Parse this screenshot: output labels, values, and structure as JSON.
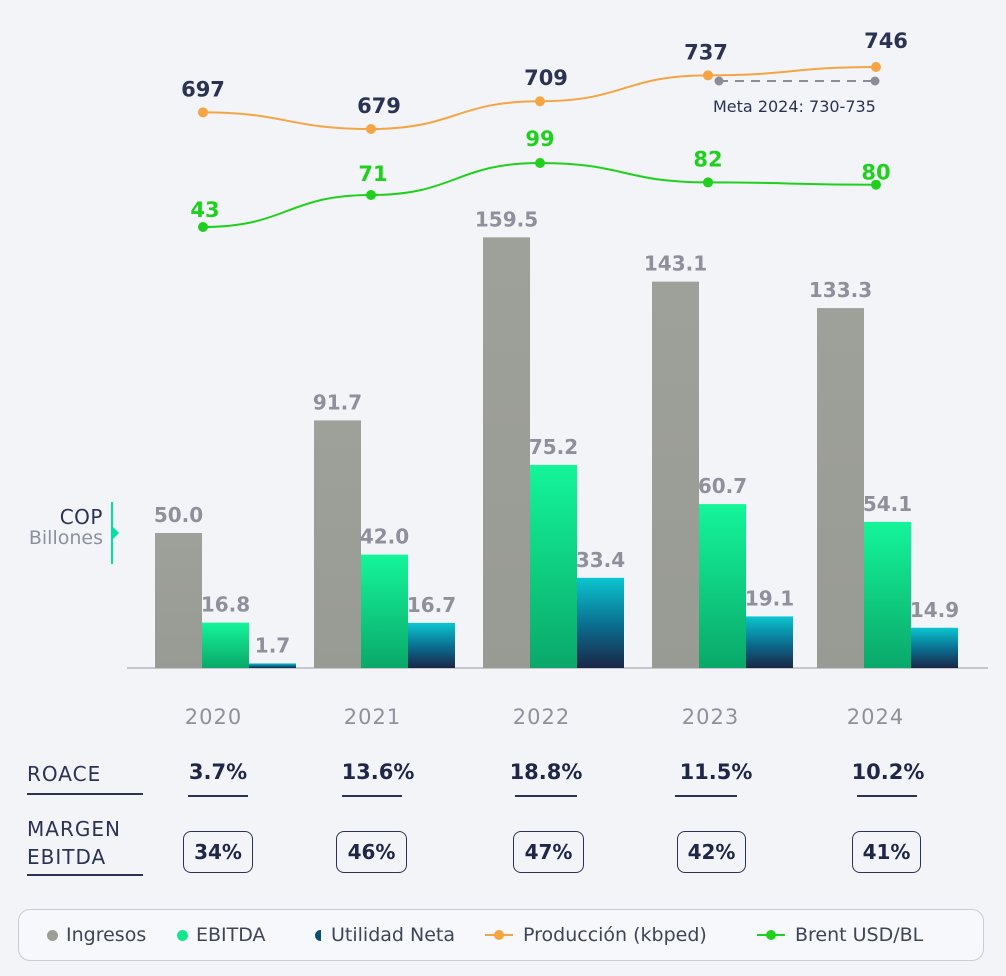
{
  "chart_data": {
    "type": "bar",
    "unit": [
      "COP",
      "Billones"
    ],
    "categories": [
      "2020",
      "2021",
      "2022",
      "2023",
      "2024"
    ],
    "series": [
      {
        "name": "Ingresos",
        "color": "#9c9f98",
        "values": [
          50.0,
          91.7,
          159.5,
          143.1,
          133.3
        ],
        "labels": [
          "50.0",
          "91.7",
          "159.5",
          "143.1",
          "133.3"
        ]
      },
      {
        "name": "EBITDA",
        "color": "#13e68f",
        "values": [
          16.8,
          42.0,
          75.2,
          60.7,
          54.1
        ],
        "labels": [
          "16.8",
          "42.0",
          "75.2",
          "60.7",
          "54.1"
        ]
      },
      {
        "name": "Utilidad Neta",
        "color": "#0ab7c3",
        "values": [
          1.7,
          16.7,
          33.4,
          19.1,
          14.9
        ],
        "labels": [
          "1.7",
          "16.7",
          "33.4",
          "19.1",
          "14.9"
        ]
      }
    ],
    "lines": [
      {
        "name": "Producción (kbped)",
        "color": "#f5a443",
        "values": [
          697,
          679,
          709,
          737,
          746
        ],
        "labels": [
          "697",
          "679",
          "709",
          "737",
          "746"
        ]
      },
      {
        "name": "Brent USD/BL",
        "color": "#1fd01c",
        "values": [
          43,
          71,
          99,
          82,
          80
        ],
        "labels": [
          "43",
          "71",
          "99",
          "82",
          "80"
        ]
      }
    ],
    "target": {
      "label": "Meta 2024: 730-735"
    },
    "table": {
      "roace": {
        "label": "ROACE",
        "values": [
          "3.7%",
          "13.6%",
          "18.8%",
          "11.5%",
          "10.2%"
        ]
      },
      "margen_ebitda": {
        "label_lines": [
          "MARGEN",
          "EBITDA"
        ],
        "values": [
          "34%",
          "46%",
          "47%",
          "42%",
          "41%"
        ]
      }
    },
    "legend": [
      {
        "name": "Ingresos",
        "marker": "dot",
        "color": "#9c9f98"
      },
      {
        "name": "EBITDA",
        "marker": "dot",
        "color": "#13e68f"
      },
      {
        "name": "Utilidad Neta",
        "marker": "half-dot",
        "color": "#0d4f6e"
      },
      {
        "name": "Producción (kbped)",
        "marker": "line-dot",
        "color": "#f5a443"
      },
      {
        "name": "Brent USD/BL",
        "marker": "line-dot",
        "color": "#1fd01c"
      }
    ]
  }
}
